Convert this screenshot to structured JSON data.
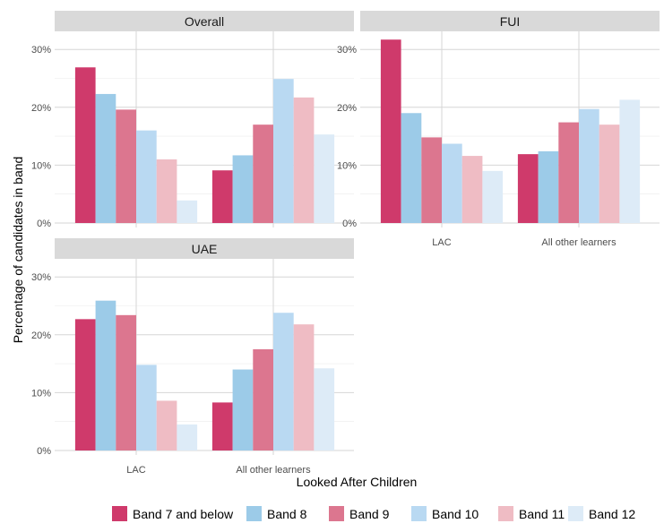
{
  "chart_data": {
    "type": "bar",
    "xlabel": "Looked After Children",
    "ylabel": "Percentage of candidates in band",
    "ylim": [
      0,
      0.3
    ],
    "y_ticks": [
      "0%",
      "10%",
      "20%",
      "30%"
    ],
    "grid": true,
    "legend_position": "bottom",
    "categories": [
      "LAC",
      "All other learners"
    ],
    "series_names": [
      "Band 7 and below",
      "Band 8",
      "Band 9",
      "Band 10",
      "Band 11",
      "Band 12"
    ],
    "colors": [
      "#cf3a6b",
      "#9ccbe8",
      "#dc768f",
      "#b9d9f2",
      "#efbcc4",
      "#ddebf7"
    ],
    "panels": [
      {
        "title": "Overall",
        "series": [
          {
            "name": "Band 7 and below",
            "values": [
              0.269,
              0.091
            ]
          },
          {
            "name": "Band 8",
            "values": [
              0.223,
              0.117
            ]
          },
          {
            "name": "Band 9",
            "values": [
              0.196,
              0.17
            ]
          },
          {
            "name": "Band 10",
            "values": [
              0.16,
              0.249
            ]
          },
          {
            "name": "Band 11",
            "values": [
              0.11,
              0.217
            ]
          },
          {
            "name": "Band 12",
            "values": [
              0.039,
              0.153
            ]
          }
        ]
      },
      {
        "title": "FUI",
        "series": [
          {
            "name": "Band 7 and below",
            "values": [
              0.317,
              0.119
            ]
          },
          {
            "name": "Band 8",
            "values": [
              0.19,
              0.124
            ]
          },
          {
            "name": "Band 9",
            "values": [
              0.148,
              0.174
            ]
          },
          {
            "name": "Band 10",
            "values": [
              0.137,
              0.197
            ]
          },
          {
            "name": "Band 11",
            "values": [
              0.116,
              0.17
            ]
          },
          {
            "name": "Band 12",
            "values": [
              0.09,
              0.213
            ]
          }
        ]
      },
      {
        "title": "UAE",
        "series": [
          {
            "name": "Band 7 and below",
            "values": [
              0.227,
              0.083
            ]
          },
          {
            "name": "Band 8",
            "values": [
              0.259,
              0.14
            ]
          },
          {
            "name": "Band 9",
            "values": [
              0.234,
              0.175
            ]
          },
          {
            "name": "Band 10",
            "values": [
              0.148,
              0.238
            ]
          },
          {
            "name": "Band 11",
            "values": [
              0.086,
              0.218
            ]
          },
          {
            "name": "Band 12",
            "values": [
              0.045,
              0.142
            ]
          }
        ]
      }
    ]
  }
}
